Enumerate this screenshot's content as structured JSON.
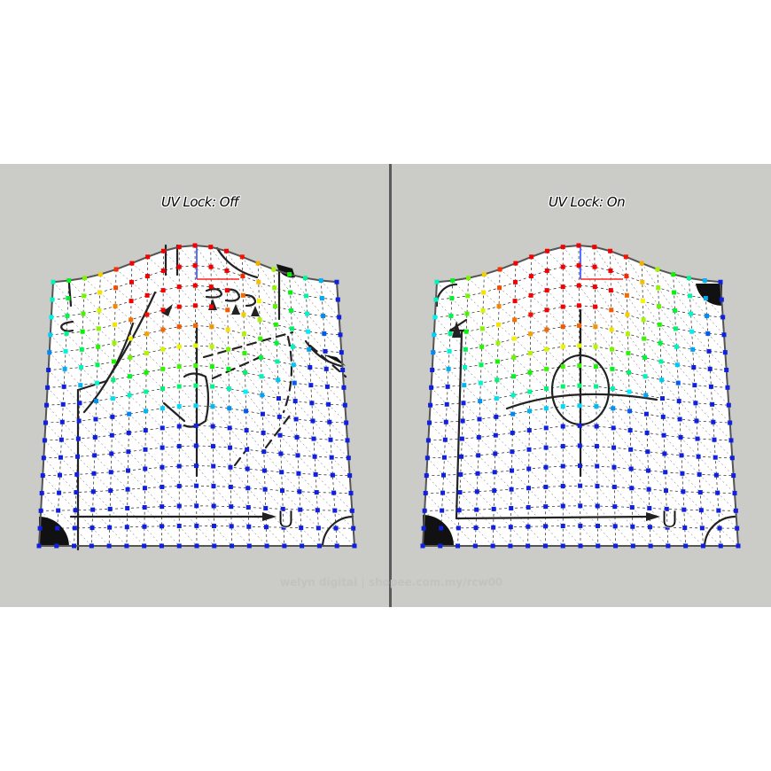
{
  "panels": [
    {
      "title": "UV Lock: Off",
      "texture_label": "U",
      "uv_lock": false
    },
    {
      "title": "UV Lock: On",
      "texture_label": "U",
      "uv_lock": true
    }
  ],
  "watermark": "welyn digital | shopee.com.my/rcw00",
  "colors": {
    "background": "#cbcbc7",
    "divider": "#5a5a5a",
    "mesh_fill": "#ffffff",
    "outline": "#555555",
    "axis_x": "#ff2020",
    "axis_y": "#2040ff",
    "vertex_low": "#1020e0"
  }
}
